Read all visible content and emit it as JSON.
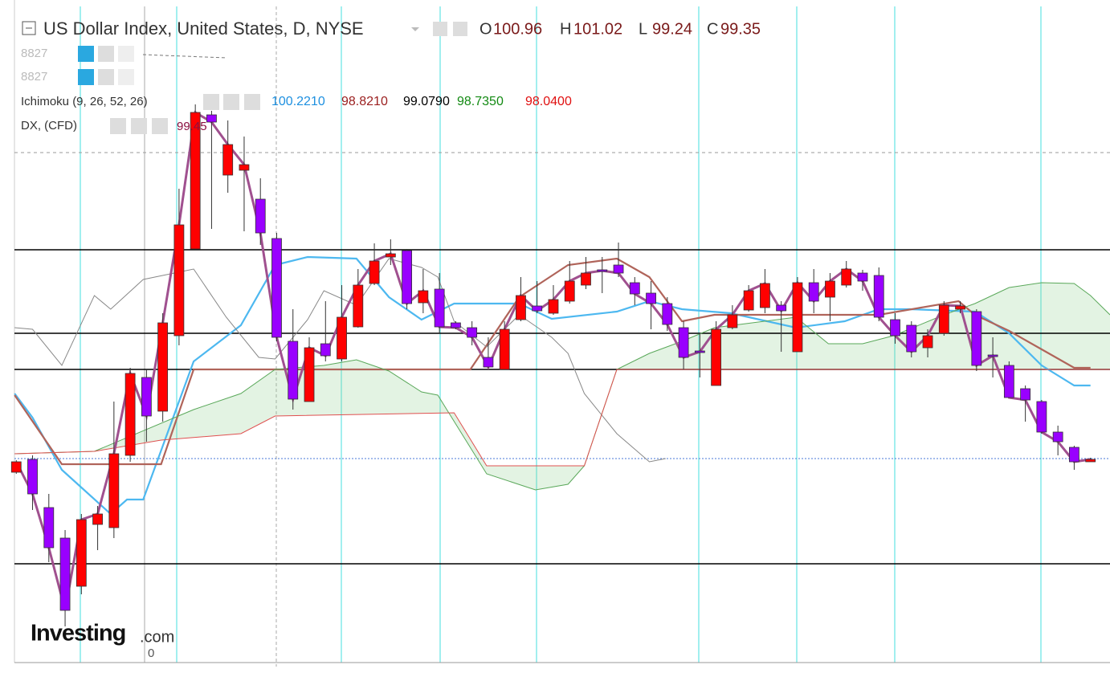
{
  "chart_data": {
    "type": "candlestick",
    "title": "US Dollar Index, United States, D, NYSE",
    "ohlc": [
      {
        "label": "O",
        "value": 100.96
      },
      {
        "label": "H",
        "value": 101.02
      },
      {
        "label": "L",
        "value": 99.24
      },
      {
        "label": "C",
        "value": 99.35
      }
    ],
    "indicators": [
      "8827",
      "8827"
    ],
    "ichimoku_label": "Ichimoku (9, 26, 52, 26)",
    "ichimoku_values": [
      "100.2210",
      "98.8210",
      "99.0790",
      "98.7350",
      "98.0400"
    ],
    "symbol_label": "DX, (CFD)",
    "last_label": "99.45",
    "brand": "Investing",
    "brand_suffix": ".com",
    "axis_zero": "0",
    "up_color": "#ff0000",
    "down_color": "#9900ff",
    "xlim": [
      -1,
      67.2
    ],
    "ylim": [
      97.62,
      106
    ],
    "open": [
      100.12,
      100.28,
      99.68,
      99.3,
      98.7,
      99.47,
      99.43,
      100.33,
      101.3,
      100.88,
      101.82,
      102.9,
      104.57,
      103.82,
      103.88,
      103.52,
      103.03,
      101.75,
      101.0,
      101.72,
      101.53,
      101.93,
      102.47,
      102.8,
      102.88,
      102.23,
      102.4,
      101.98,
      101.92,
      101.55,
      101.4,
      102.02,
      102.19,
      102.1,
      102.25,
      102.45,
      102.64,
      102.7,
      102.48,
      102.35,
      102.22,
      101.92,
      101.63,
      101.2,
      101.92,
      102.14,
      102.17,
      102.2,
      101.62,
      102.48,
      102.3,
      102.45,
      102.6,
      102.57,
      102.02,
      101.95,
      101.67,
      101.85,
      102.15,
      102.12,
      101.58,
      101.45,
      101.16,
      101.0,
      100.62,
      100.43,
      100.25
    ],
    "high": [
      100.27,
      100.33,
      99.85,
      99.4,
      99.6,
      99.7,
      101.0,
      101.42,
      101.4,
      102.1,
      103.65,
      104.7,
      104.62,
      104.5,
      104.3,
      103.78,
      103.1,
      102.15,
      101.8,
      102.25,
      102.45,
      102.65,
      102.97,
      103.02,
      102.9,
      102.65,
      102.6,
      102.0,
      102.0,
      101.8,
      102.0,
      102.55,
      102.5,
      102.45,
      102.75,
      102.8,
      102.8,
      102.98,
      102.55,
      102.5,
      102.3,
      102.0,
      101.85,
      102.0,
      102.2,
      102.45,
      102.65,
      102.25,
      102.55,
      102.65,
      102.6,
      102.75,
      102.64,
      102.67,
      102.1,
      102.0,
      101.9,
      102.25,
      102.25,
      102.15,
      101.8,
      101.5,
      101.2,
      101.02,
      100.7,
      100.45,
      100.3
    ],
    "low": [
      100.1,
      99.65,
      99.0,
      98.2,
      98.6,
      99.15,
      99.3,
      100.25,
      100.5,
      100.75,
      101.7,
      102.9,
      103.15,
      103.6,
      103.12,
      102.95,
      101.75,
      100.9,
      101.0,
      101.5,
      101.5,
      101.92,
      102.45,
      102.7,
      102.15,
      102.1,
      101.85,
      101.9,
      101.7,
      101.42,
      101.4,
      102.0,
      102.1,
      102.08,
      102.22,
      102.4,
      102.35,
      102.55,
      102.2,
      101.9,
      101.88,
      101.4,
      101.3,
      101.2,
      101.9,
      102.12,
      102.1,
      101.62,
      101.62,
      102.1,
      102.0,
      102.42,
      102.38,
      102.0,
      101.72,
      101.55,
      101.55,
      101.82,
      102.1,
      101.38,
      101.3,
      101.05,
      100.75,
      100.6,
      100.33,
      100.15,
      100.25
    ],
    "close": [
      100.25,
      99.85,
      99.18,
      98.4,
      99.53,
      99.6,
      100.35,
      101.35,
      100.82,
      101.98,
      103.2,
      104.6,
      104.48,
      104.2,
      103.95,
      103.1,
      101.8,
      101.03,
      101.67,
      101.57,
      102.05,
      102.45,
      102.75,
      102.84,
      102.22,
      102.38,
      101.93,
      101.92,
      101.8,
      101.43,
      101.9,
      102.32,
      102.13,
      102.27,
      102.5,
      102.6,
      102.63,
      102.6,
      102.34,
      102.22,
      101.96,
      101.55,
      101.62,
      101.9,
      102.08,
      102.38,
      102.47,
      102.13,
      102.48,
      102.25,
      102.5,
      102.65,
      102.5,
      102.05,
      101.82,
      101.62,
      101.82,
      102.2,
      102.19,
      101.45,
      101.57,
      101.05,
      101.02,
      100.62,
      100.5,
      100.25,
      100.28
    ],
    "series": [
      {
        "color": "#4db8f0",
        "x": [
          -0.1,
          1.0,
          2.8,
          5.8,
          6.8,
          7.8,
          10.9,
          13.8,
          15.9,
          17.9,
          20.9,
          22.9,
          24.9,
          26.9,
          30.9,
          32.9,
          36.9,
          38.9,
          40.9,
          43.9,
          47.9,
          50.9,
          53.0,
          54.9,
          58.9,
          61.0,
          63.0,
          65.0,
          66.0
        ],
        "values": [
          101.1,
          100.8,
          100.15,
          99.6,
          99.78,
          99.78,
          101.5,
          101.95,
          102.7,
          102.8,
          102.78,
          102.3,
          102.02,
          102.22,
          102.22,
          102.03,
          102.12,
          102.25,
          102.15,
          102.1,
          101.92,
          102.0,
          102.15,
          102.15,
          102.12,
          101.85,
          101.45,
          101.2,
          101.2
        ]
      },
      {
        "color": "#b0645a",
        "x": [
          -0.1,
          2.8,
          8.9,
          10.9,
          27.9,
          30.9,
          33.9,
          36.9,
          38.9,
          40.9,
          42.9,
          53.0,
          57.9,
          58.9,
          61.0,
          63.0,
          65.0,
          66.0
        ],
        "values": [
          101.08,
          100.22,
          100.22,
          101.4,
          101.4,
          102.3,
          102.7,
          102.78,
          102.55,
          102.0,
          102.08,
          102.08,
          102.25,
          102.08,
          101.88,
          101.65,
          101.42,
          101.42
        ]
      },
      {
        "color": "#888888",
        "x": [
          -0.1,
          1.0,
          2.8,
          4.8,
          5.8,
          7.8,
          10.9,
          12.9,
          14.9,
          15.9,
          17.9,
          18.9,
          20.9,
          22.9,
          24.9,
          25.9,
          26.9,
          28.9,
          30.9,
          32.9,
          33.9,
          34.9,
          36.9,
          38.9,
          39.9
        ],
        "values": [
          101.92,
          101.9,
          101.45,
          102.32,
          102.15,
          102.52,
          102.65,
          102.05,
          101.55,
          101.53,
          102.02,
          102.38,
          102.2,
          102.78,
          102.67,
          102.55,
          102.0,
          101.68,
          102.08,
          101.8,
          101.6,
          101.1,
          100.6,
          100.25,
          100.29
        ]
      },
      {
        "color": "#5aa85a",
        "x": [
          -0.1,
          4.8,
          10.9,
          13.8,
          15.9,
          18.9,
          20.9,
          22.9,
          24.9,
          25.9,
          28.9,
          31.9,
          33.9,
          34.9,
          36.9,
          38.9,
          40.9,
          42.9,
          47.9,
          49.9,
          52.0,
          53.9,
          57.0,
          58.9,
          61.0,
          63.0,
          65.0,
          66.0,
          67.2
        ],
        "values": [
          100.35,
          100.38,
          100.9,
          101.1,
          101.4,
          101.45,
          101.52,
          101.38,
          101.12,
          101.08,
          100.1,
          99.9,
          99.97,
          100.2,
          101.4,
          101.6,
          101.75,
          101.92,
          102.05,
          101.72,
          101.72,
          101.82,
          102.08,
          102.22,
          102.42,
          102.48,
          102.47,
          102.32,
          102.08
        ]
      },
      {
        "color": "#e05050",
        "x": [
          -0.1,
          4.8,
          8.9,
          13.8,
          15.9,
          26.9,
          28.9,
          34.9,
          36.9,
          67.2
        ],
        "values": [
          100.35,
          100.38,
          100.52,
          100.6,
          100.82,
          100.86,
          100.2,
          100.2,
          101.4,
          101.4
        ]
      }
    ],
    "cloud_color": "#8fd08f",
    "hlines": [
      102.89,
      101.85,
      101.4,
      98.98
    ],
    "price_line": 100.29,
    "dashed_line": 104.1
  }
}
